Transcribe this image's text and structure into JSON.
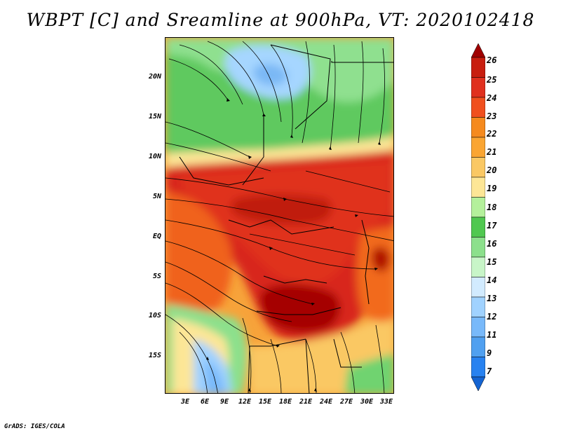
{
  "title": "WBPT [C] and Sreamline at 900hPa, VT: 2020102418",
  "footer": "GrADS: IGES/COLA",
  "map": {
    "lat_labels": [
      "20N",
      "15N",
      "10N",
      "5N",
      "EQ",
      "5S",
      "10S",
      "15S"
    ],
    "lon_labels": [
      "3E",
      "6E",
      "9E",
      "12E",
      "15E",
      "18E",
      "21E",
      "24E",
      "27E",
      "30E",
      "33E"
    ]
  },
  "colorbar": {
    "labels": [
      "26",
      "25",
      "24",
      "23",
      "22",
      "21",
      "20",
      "19",
      "18",
      "17",
      "16",
      "15",
      "14",
      "13",
      "12",
      "11",
      "9",
      "7"
    ],
    "colors": [
      "#a00000",
      "#c81e0f",
      "#e0301e",
      "#f0501e",
      "#f58a1e",
      "#faa532",
      "#fac864",
      "#fde696",
      "#b4f09b",
      "#50c850",
      "#8ce08c",
      "#c8f5c8",
      "#d2ebff",
      "#a0d2ff",
      "#78b9fa",
      "#50a0f0",
      "#2882f0",
      "#1464d2"
    ]
  }
}
